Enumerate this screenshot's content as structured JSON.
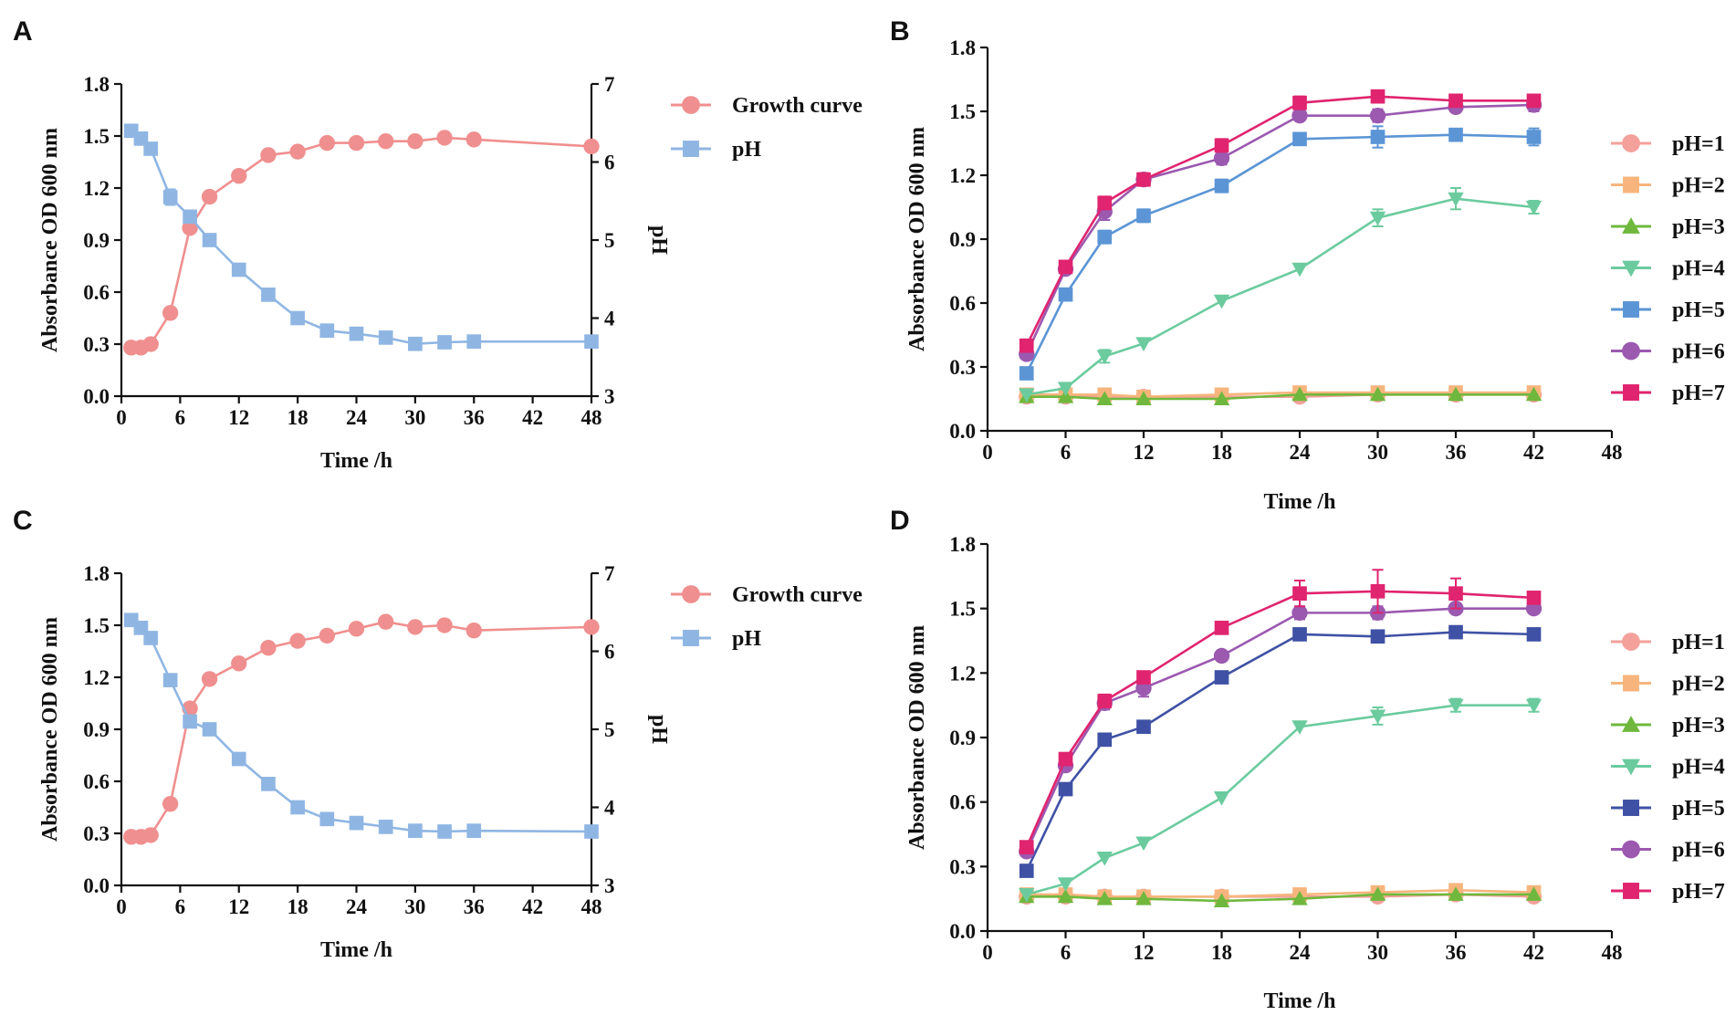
{
  "chart_data": [
    {
      "panel": "A",
      "type": "line",
      "xlabel": "Time /h",
      "ylabel": "Absorbance  OD 600 nm",
      "y2label": "pH",
      "xlim": [
        0,
        48
      ],
      "xticks": [
        0,
        6,
        12,
        18,
        24,
        30,
        36,
        42,
        48
      ],
      "ylim": [
        0,
        1.8
      ],
      "yticks": [
        "0.0",
        "0.3",
        "0.6",
        "0.9",
        "1.2",
        "1.5",
        "1.8"
      ],
      "y2lim": [
        3,
        7
      ],
      "y2ticks": [
        "3",
        "4",
        "5",
        "6",
        "7"
      ],
      "legend_position": "top-right outside",
      "series": [
        {
          "name": "Growth curve",
          "axis": "left",
          "color": "#f08f8f",
          "marker": "circle",
          "x": [
            1,
            2,
            3,
            5,
            7,
            9,
            12,
            15,
            18,
            21,
            24,
            27,
            30,
            33,
            36,
            48
          ],
          "values": [
            0.28,
            0.28,
            0.3,
            0.48,
            0.97,
            1.15,
            1.27,
            1.39,
            1.41,
            1.46,
            1.46,
            1.47,
            1.47,
            1.49,
            1.48,
            1.44
          ],
          "errors": [
            0,
            0,
            0,
            0,
            0,
            0,
            0,
            0,
            0,
            0,
            0,
            0,
            0,
            0,
            0,
            0
          ]
        },
        {
          "name": "pH",
          "axis": "right",
          "color": "#8fb6e3",
          "marker": "square",
          "x": [
            1,
            2,
            3,
            5,
            7,
            9,
            12,
            15,
            18,
            21,
            24,
            27,
            30,
            33,
            36,
            48
          ],
          "values": [
            6.4,
            6.3,
            6.17,
            5.55,
            5.3,
            5.0,
            4.62,
            4.3,
            4.0,
            3.84,
            3.8,
            3.75,
            3.67,
            3.69,
            3.7,
            3.7
          ],
          "errors": [
            0,
            0,
            0,
            0.1,
            0,
            0,
            0,
            0,
            0,
            0,
            0,
            0,
            0,
            0,
            0,
            0
          ]
        }
      ]
    },
    {
      "panel": "B",
      "type": "line",
      "xlabel": "Time /h",
      "ylabel": "Absorbance  OD 600 nm",
      "xlim": [
        0,
        48
      ],
      "xticks": [
        0,
        6,
        12,
        18,
        24,
        30,
        36,
        42,
        48
      ],
      "ylim": [
        0,
        1.8
      ],
      "yticks": [
        "0.0",
        "0.3",
        "0.6",
        "0.9",
        "1.2",
        "1.5",
        "1.8"
      ],
      "legend_position": "right outside",
      "series": [
        {
          "name": "pH=1",
          "color": "#f4a09b",
          "marker": "circle",
          "x": [
            3,
            6,
            9,
            12,
            18,
            24,
            30,
            36,
            42
          ],
          "values": [
            0.16,
            0.16,
            0.16,
            0.16,
            0.16,
            0.16,
            0.17,
            0.17,
            0.17
          ],
          "errors": [
            0,
            0,
            0,
            0,
            0,
            0,
            0,
            0,
            0
          ]
        },
        {
          "name": "pH=2",
          "color": "#f7b57d",
          "marker": "square",
          "x": [
            3,
            6,
            9,
            12,
            18,
            24,
            30,
            36,
            42
          ],
          "values": [
            0.17,
            0.17,
            0.17,
            0.16,
            0.17,
            0.18,
            0.18,
            0.18,
            0.18
          ],
          "errors": [
            0,
            0,
            0,
            0,
            0,
            0,
            0,
            0,
            0
          ]
        },
        {
          "name": "pH=3",
          "color": "#6fb83d",
          "marker": "triangle-up",
          "x": [
            3,
            6,
            9,
            12,
            18,
            24,
            30,
            36,
            42
          ],
          "values": [
            0.16,
            0.16,
            0.15,
            0.15,
            0.15,
            0.17,
            0.17,
            0.17,
            0.17
          ],
          "errors": [
            0,
            0,
            0,
            0,
            0,
            0,
            0,
            0,
            0
          ]
        },
        {
          "name": "pH=4",
          "color": "#6bcb9e",
          "marker": "triangle-down",
          "x": [
            3,
            6,
            9,
            12,
            18,
            24,
            30,
            36,
            42
          ],
          "values": [
            0.17,
            0.2,
            0.35,
            0.41,
            0.61,
            0.76,
            1.0,
            1.09,
            1.05
          ],
          "errors": [
            0,
            0,
            0.03,
            0,
            0,
            0,
            0.04,
            0.05,
            0.03
          ]
        },
        {
          "name": "pH=5",
          "color": "#5b95d5",
          "marker": "square",
          "x": [
            3,
            6,
            9,
            12,
            18,
            24,
            30,
            36,
            42
          ],
          "values": [
            0.27,
            0.64,
            0.91,
            1.01,
            1.15,
            1.37,
            1.38,
            1.39,
            1.38
          ],
          "errors": [
            0.02,
            0.02,
            0.03,
            0.03,
            0.03,
            0.02,
            0.05,
            0.02,
            0.04
          ]
        },
        {
          "name": "pH=6",
          "color": "#9b59b0",
          "marker": "circle",
          "x": [
            3,
            6,
            9,
            12,
            18,
            24,
            30,
            36,
            42
          ],
          "values": [
            0.36,
            0.76,
            1.03,
            1.18,
            1.28,
            1.48,
            1.48,
            1.52,
            1.53
          ],
          "errors": [
            0.02,
            0.02,
            0.04,
            0.02,
            0.03,
            0.02,
            0.03,
            0.02,
            0.03
          ]
        },
        {
          "name": "pH=7",
          "color": "#e0246f",
          "marker": "square",
          "x": [
            3,
            6,
            9,
            12,
            18,
            24,
            30,
            36,
            42
          ],
          "values": [
            0.4,
            0.77,
            1.07,
            1.18,
            1.34,
            1.54,
            1.57,
            1.55,
            1.55
          ],
          "errors": [
            0.02,
            0.02,
            0.03,
            0.03,
            0.03,
            0.03,
            0.02,
            0.02,
            0.02
          ]
        }
      ]
    },
    {
      "panel": "C",
      "type": "line",
      "xlabel": "Time /h",
      "ylabel": "Absorbance  OD 600 nm",
      "y2label": "pH",
      "xlim": [
        0,
        48
      ],
      "xticks": [
        0,
        6,
        12,
        18,
        24,
        30,
        36,
        42,
        48
      ],
      "ylim": [
        0,
        1.8
      ],
      "yticks": [
        "0.0",
        "0.3",
        "0.6",
        "0.9",
        "1.2",
        "1.5",
        "1.8"
      ],
      "y2lim": [
        3,
        7
      ],
      "y2ticks": [
        "3",
        "4",
        "5",
        "6",
        "7"
      ],
      "legend_position": "top-right outside",
      "series": [
        {
          "name": "Growth curve",
          "axis": "left",
          "color": "#f08f8f",
          "marker": "circle",
          "x": [
            1,
            2,
            3,
            5,
            7,
            9,
            12,
            15,
            18,
            21,
            24,
            27,
            30,
            33,
            36,
            48
          ],
          "values": [
            0.28,
            0.28,
            0.29,
            0.47,
            1.02,
            1.19,
            1.28,
            1.37,
            1.41,
            1.44,
            1.48,
            1.52,
            1.49,
            1.5,
            1.47,
            1.49
          ],
          "errors": [
            0,
            0,
            0,
            0,
            0,
            0,
            0,
            0,
            0,
            0,
            0,
            0,
            0,
            0,
            0,
            0
          ]
        },
        {
          "name": "pH",
          "axis": "right",
          "color": "#8fb6e3",
          "marker": "square",
          "x": [
            1,
            2,
            3,
            5,
            7,
            9,
            12,
            15,
            18,
            21,
            24,
            27,
            30,
            33,
            36,
            48
          ],
          "values": [
            6.4,
            6.3,
            6.17,
            5.63,
            5.1,
            5.0,
            4.62,
            4.3,
            4.0,
            3.85,
            3.8,
            3.75,
            3.7,
            3.69,
            3.7,
            3.69
          ],
          "errors": [
            0,
            0,
            0,
            0,
            0,
            0,
            0,
            0,
            0,
            0,
            0,
            0,
            0,
            0,
            0,
            0
          ]
        }
      ]
    },
    {
      "panel": "D",
      "type": "line",
      "xlabel": "Time /h",
      "ylabel": "Absorbance  OD 600 nm",
      "xlim": [
        0,
        48
      ],
      "xticks": [
        0,
        6,
        12,
        18,
        24,
        30,
        36,
        42,
        48
      ],
      "ylim": [
        0,
        1.8
      ],
      "yticks": [
        "0.0",
        "0.3",
        "0.6",
        "0.9",
        "1.2",
        "1.5",
        "1.8"
      ],
      "legend_position": "right outside",
      "series": [
        {
          "name": "pH=1",
          "color": "#f4a09b",
          "marker": "circle",
          "x": [
            3,
            6,
            9,
            12,
            18,
            24,
            30,
            36,
            42
          ],
          "values": [
            0.16,
            0.16,
            0.16,
            0.16,
            0.16,
            0.16,
            0.16,
            0.17,
            0.16
          ],
          "errors": [
            0,
            0,
            0,
            0,
            0,
            0,
            0,
            0,
            0
          ]
        },
        {
          "name": "pH=2",
          "color": "#f7b57d",
          "marker": "square",
          "x": [
            3,
            6,
            9,
            12,
            18,
            24,
            30,
            36,
            42
          ],
          "values": [
            0.17,
            0.17,
            0.16,
            0.16,
            0.16,
            0.17,
            0.18,
            0.19,
            0.18
          ],
          "errors": [
            0,
            0,
            0,
            0,
            0,
            0,
            0,
            0,
            0
          ]
        },
        {
          "name": "pH=3",
          "color": "#6fb83d",
          "marker": "triangle-up",
          "x": [
            3,
            6,
            9,
            12,
            18,
            24,
            30,
            36,
            42
          ],
          "values": [
            0.16,
            0.16,
            0.15,
            0.15,
            0.14,
            0.15,
            0.17,
            0.17,
            0.17
          ],
          "errors": [
            0,
            0,
            0,
            0,
            0,
            0,
            0,
            0,
            0
          ]
        },
        {
          "name": "pH=4",
          "color": "#6bcb9e",
          "marker": "triangle-down",
          "x": [
            3,
            6,
            9,
            12,
            18,
            24,
            30,
            36,
            42
          ],
          "values": [
            0.17,
            0.22,
            0.34,
            0.41,
            0.62,
            0.95,
            1.0,
            1.05,
            1.05
          ],
          "errors": [
            0,
            0,
            0,
            0,
            0,
            0,
            0.04,
            0.03,
            0.03
          ]
        },
        {
          "name": "pH=5",
          "color": "#3f51a5",
          "marker": "square",
          "x": [
            3,
            6,
            9,
            12,
            18,
            24,
            30,
            36,
            42
          ],
          "values": [
            0.28,
            0.66,
            0.89,
            0.95,
            1.18,
            1.38,
            1.37,
            1.39,
            1.38
          ],
          "errors": [
            0.02,
            0.02,
            0.02,
            0.02,
            0.02,
            0.02,
            0.02,
            0.02,
            0.02
          ]
        },
        {
          "name": "pH=6",
          "color": "#9b59b0",
          "marker": "circle",
          "x": [
            3,
            6,
            9,
            12,
            18,
            24,
            30,
            36,
            42
          ],
          "values": [
            0.37,
            0.77,
            1.06,
            1.13,
            1.28,
            1.48,
            1.48,
            1.5,
            1.5
          ],
          "errors": [
            0.02,
            0.02,
            0.03,
            0.04,
            0.02,
            0.03,
            0.03,
            0.02,
            0.02
          ]
        },
        {
          "name": "pH=7",
          "color": "#e0246f",
          "marker": "square",
          "x": [
            3,
            6,
            9,
            12,
            18,
            24,
            30,
            36,
            42
          ],
          "values": [
            0.39,
            0.8,
            1.07,
            1.18,
            1.41,
            1.57,
            1.58,
            1.57,
            1.55
          ],
          "errors": [
            0.02,
            0.02,
            0.03,
            0.02,
            0.02,
            0.06,
            0.1,
            0.07,
            0.02
          ]
        }
      ]
    }
  ]
}
